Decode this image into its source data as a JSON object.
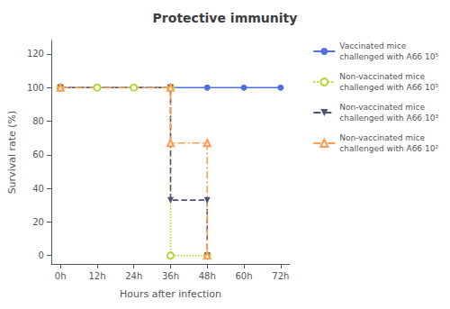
{
  "chart_data": {
    "type": "line",
    "title": "Protective immunity",
    "x_label": "Hours after infection",
    "y_label": "Survival rate (%)",
    "xlim": [
      -3,
      75
    ],
    "xticks": [
      {
        "value": 0,
        "label": "0h"
      },
      {
        "value": 12,
        "label": "12h"
      },
      {
        "value": 24,
        "label": "24h"
      },
      {
        "value": 36,
        "label": "36h"
      },
      {
        "value": 48,
        "label": "48h"
      },
      {
        "value": 60,
        "label": "60h"
      },
      {
        "value": 72,
        "label": "72h"
      }
    ],
    "ylim": [
      -5,
      128
    ],
    "yticks": [
      0,
      20,
      40,
      60,
      80,
      100,
      120
    ],
    "grid": false,
    "legend": "upper right",
    "series": [
      {
        "name": "Vaccinated mice\nchallenged with A66 10⁵",
        "x": [
          0,
          12,
          24,
          36,
          48,
          60,
          72
        ],
        "values": [
          100,
          100,
          100,
          100,
          100,
          100,
          100
        ],
        "line_style": "solid",
        "marker": "circle"
      },
      {
        "name": "Non-vaccinated mice\nchallenged with A66 10⁵",
        "x": [
          0,
          12,
          24,
          36,
          36,
          48
        ],
        "values": [
          100,
          100,
          100,
          100,
          0,
          0
        ],
        "line_style": "dotted",
        "marker": "open_circle"
      },
      {
        "name": "Non-vaccinated mice\nchallenged with A66 10³",
        "x": [
          0,
          36,
          36,
          48,
          48
        ],
        "values": [
          100,
          100,
          33,
          33,
          0
        ],
        "line_style": "dashed",
        "marker": "triangle_down"
      },
      {
        "name": "Non-vaccinated mice\nchallenged with A66 10²",
        "x": [
          0,
          36,
          36,
          48,
          48
        ],
        "values": [
          100,
          100,
          67,
          67,
          0
        ],
        "line_style": "dashdot",
        "marker": "open_triangle_up"
      }
    ]
  }
}
